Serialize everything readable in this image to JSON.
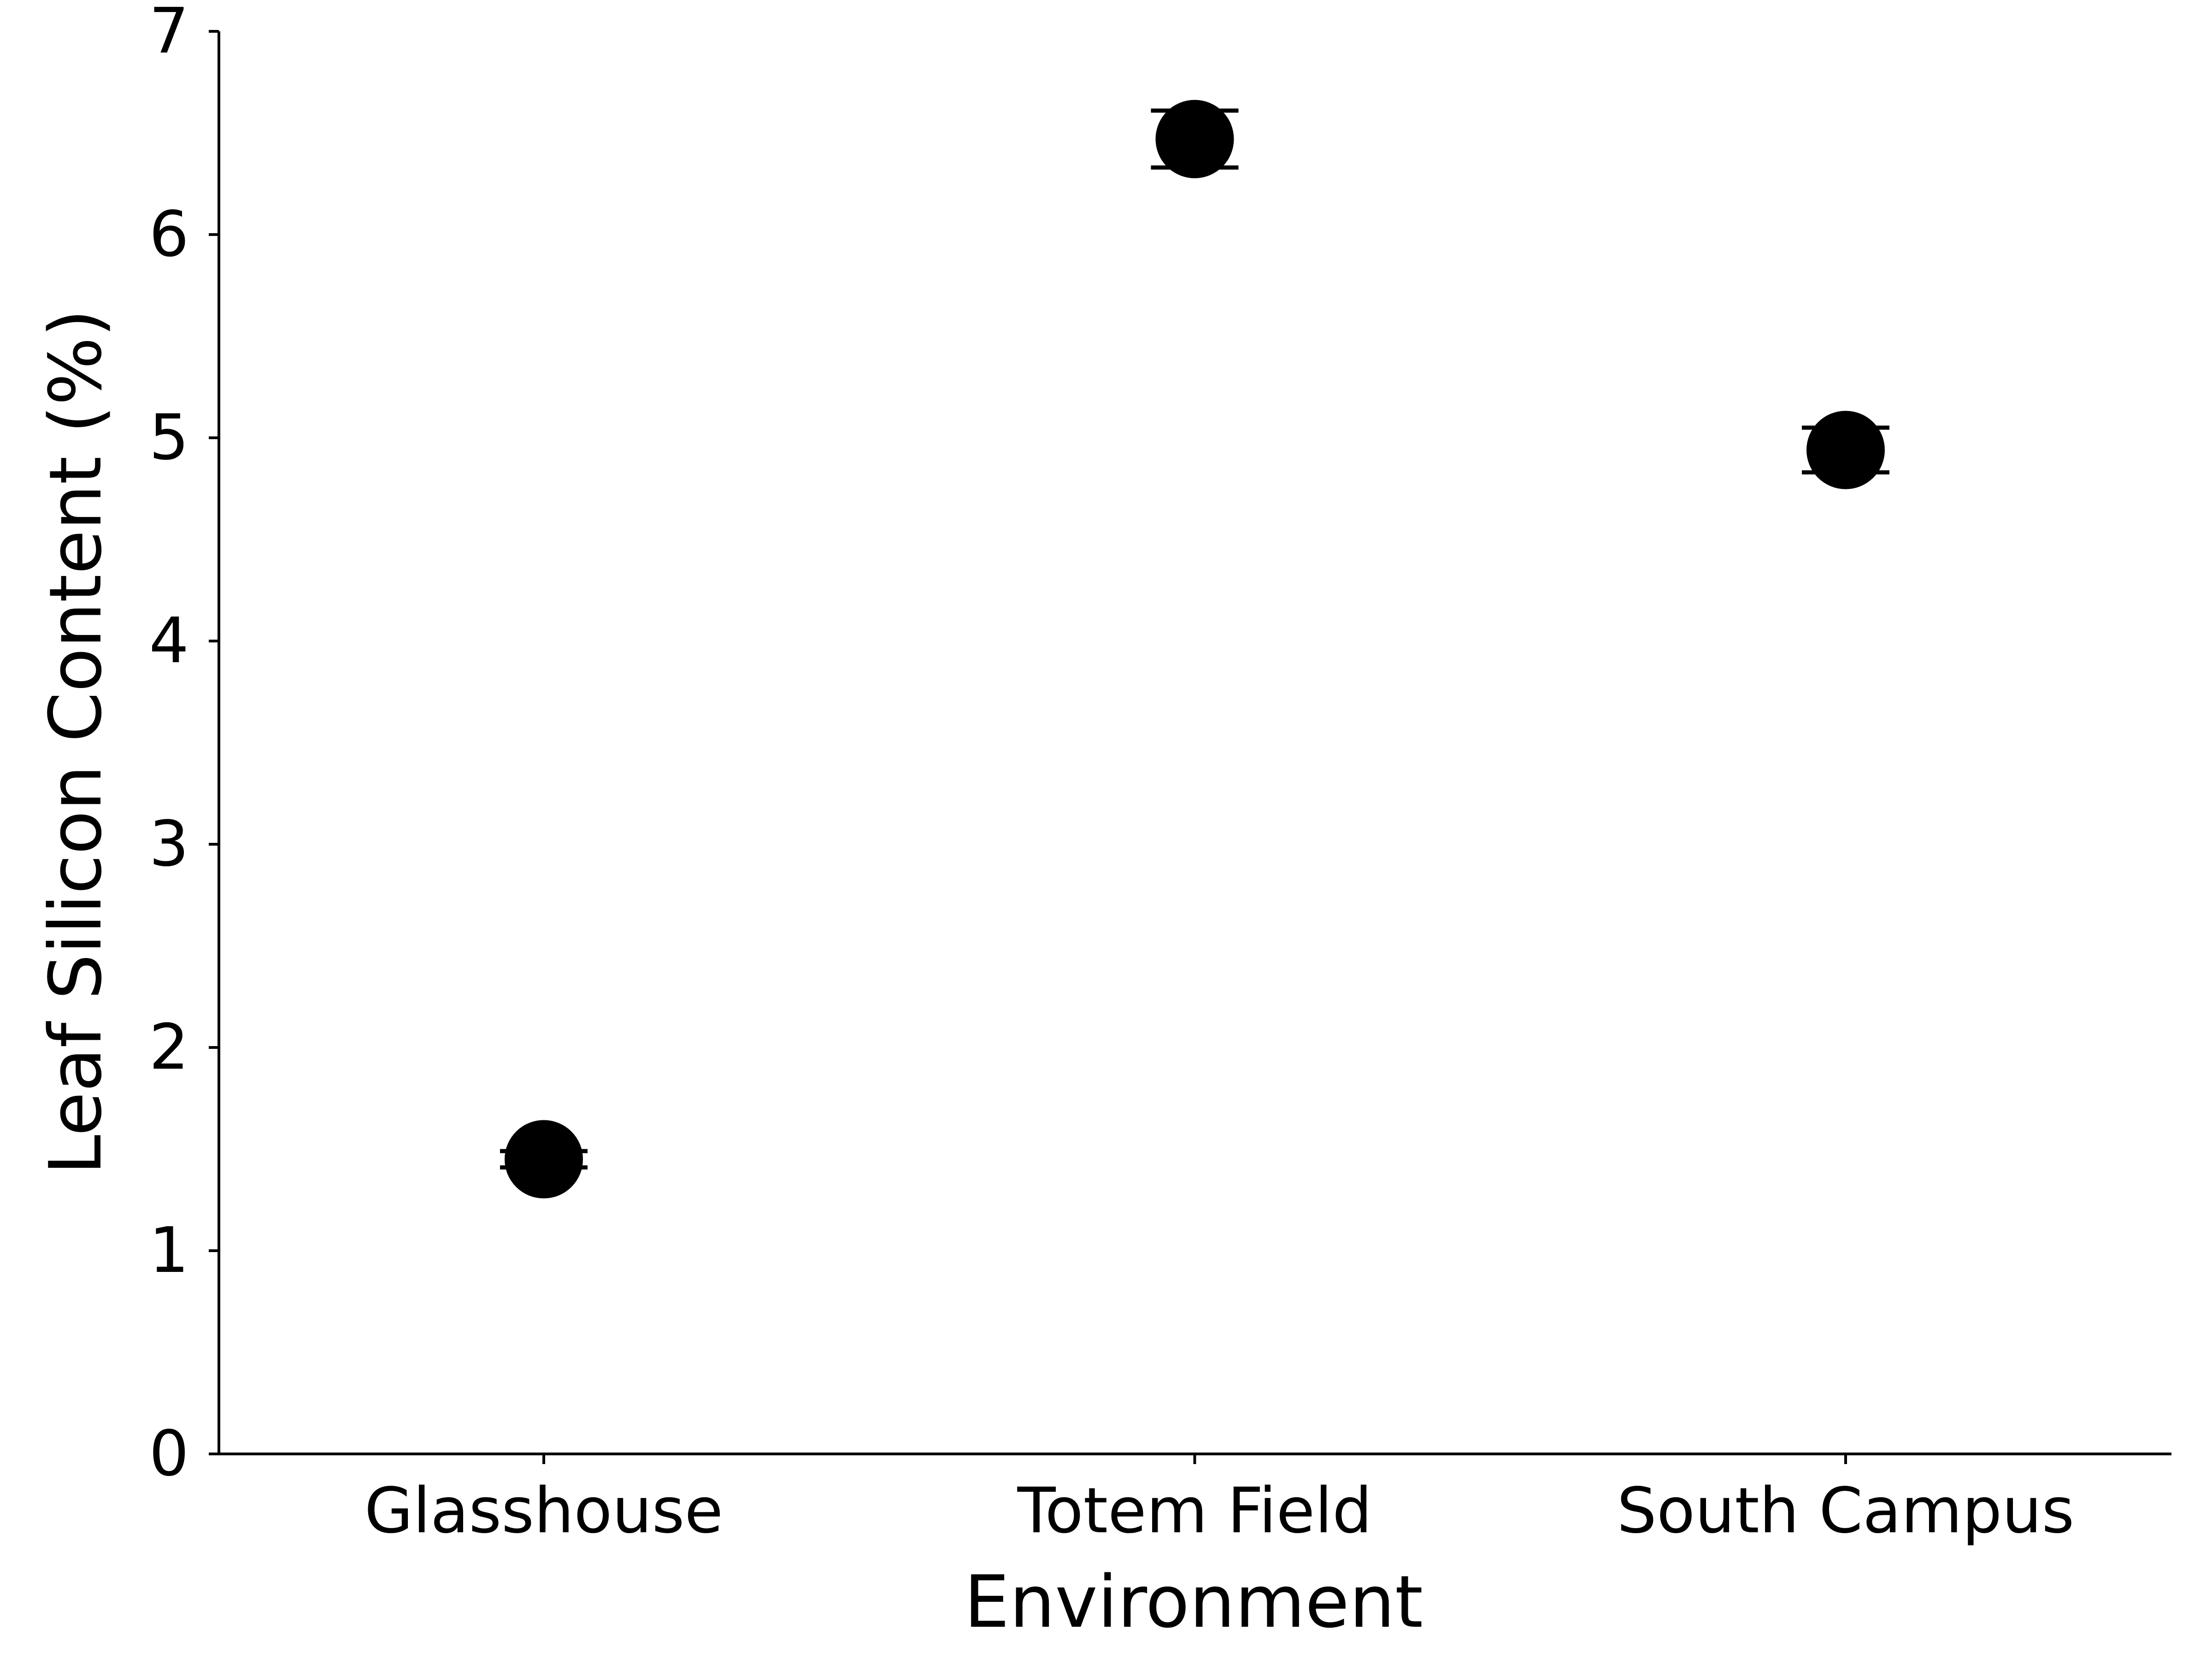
{
  "chart_data": {
    "type": "scatter",
    "title": "",
    "xlabel": "Environment",
    "ylabel": "Leaf Silicon Content (%)",
    "categories": [
      "Glasshouse",
      "Totem Field",
      "South Campus"
    ],
    "values": [
      1.45,
      6.47,
      4.94
    ],
    "errors": [
      0.04,
      0.14,
      0.11
    ],
    "ylim": [
      0,
      7
    ],
    "yticks": [
      0,
      1,
      2,
      3,
      4,
      5,
      6,
      7
    ],
    "grid": false,
    "legend": "none",
    "marker_color": "#000000"
  }
}
